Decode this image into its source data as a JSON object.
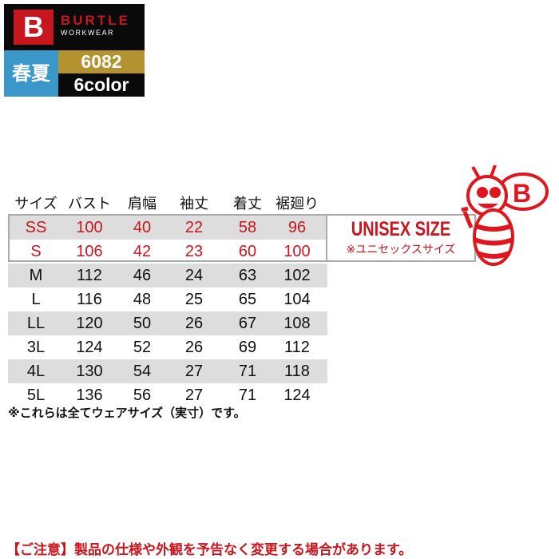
{
  "brand": {
    "mark": "B",
    "name": "BURTLE",
    "sub": "WORKWEAR"
  },
  "season": "春夏",
  "model": "6082",
  "colors": "6color",
  "table": {
    "headers": [
      "サイズ",
      "バスト",
      "肩幅",
      "袖丈",
      "着丈",
      "裾廻り"
    ],
    "rows": [
      [
        "SS",
        "100",
        "40",
        "22",
        "58",
        "96"
      ],
      [
        "S",
        "106",
        "42",
        "23",
        "60",
        "100"
      ],
      [
        "M",
        "112",
        "46",
        "24",
        "63",
        "102"
      ],
      [
        "L",
        "116",
        "48",
        "25",
        "65",
        "104"
      ],
      [
        "LL",
        "120",
        "50",
        "26",
        "67",
        "108"
      ],
      [
        "3L",
        "124",
        "52",
        "26",
        "69",
        "112"
      ],
      [
        "4L",
        "130",
        "54",
        "27",
        "71",
        "118"
      ],
      [
        "5L",
        "136",
        "56",
        "27",
        "71",
        "124"
      ]
    ]
  },
  "unisex": {
    "title": "UNISEX SIZE",
    "subtitle": "※ユニセックスサイズ"
  },
  "note": "※これらは全てウェアサイズ（実寸）です。",
  "footer": "【ご注意】製品の仕様や外観を予告なく変更する場合があります。",
  "accent_color": "#c8161e"
}
